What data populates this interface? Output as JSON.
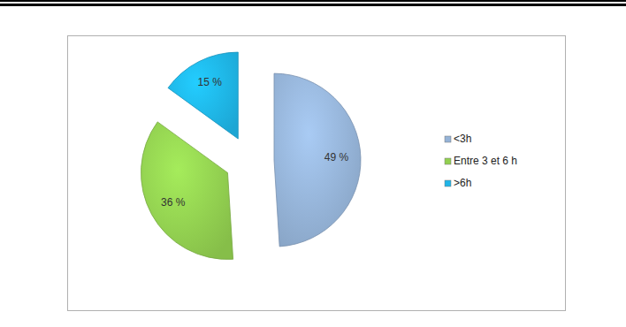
{
  "chart_data": {
    "type": "pie",
    "categories": [
      "<3h",
      "Entre 3 et 6 h",
      ">6h"
    ],
    "values": [
      49,
      36,
      15
    ],
    "value_labels": [
      "49 %",
      "36 %",
      "15 %"
    ],
    "colors": [
      "#95b3d7",
      "#92d050",
      "#1fb5e8"
    ],
    "data_labels": true,
    "legend": "right"
  }
}
